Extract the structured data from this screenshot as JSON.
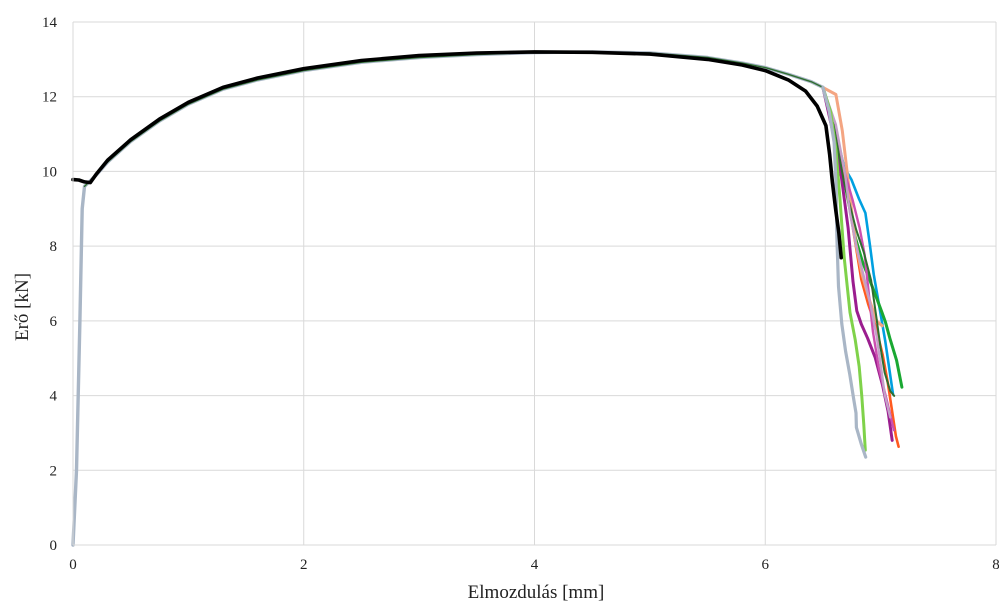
{
  "chart_data": {
    "type": "line",
    "title": "",
    "xlabel": "Elmozdulás [mm]",
    "ylabel": "Erő [kN]",
    "xlim": [
      0,
      8
    ],
    "ylim": [
      0,
      14
    ],
    "xticks": [
      0,
      2,
      4,
      6,
      8
    ],
    "yticks": [
      0,
      2,
      4,
      6,
      8,
      10,
      12,
      14
    ],
    "grid": true,
    "legend": "none",
    "common_curve": [
      [
        0.0,
        0.0
      ],
      [
        0.03,
        2.0
      ],
      [
        0.06,
        6.0
      ],
      [
        0.08,
        9.0
      ],
      [
        0.1,
        9.6
      ],
      [
        0.2,
        9.9
      ],
      [
        0.3,
        10.25
      ],
      [
        0.5,
        10.8
      ],
      [
        0.75,
        11.35
      ],
      [
        1.0,
        11.8
      ],
      [
        1.3,
        12.2
      ],
      [
        1.6,
        12.45
      ],
      [
        2.0,
        12.7
      ],
      [
        2.5,
        12.92
      ],
      [
        3.0,
        13.05
      ],
      [
        3.5,
        13.13
      ],
      [
        4.0,
        13.18
      ],
      [
        4.5,
        13.2
      ],
      [
        5.0,
        13.17
      ],
      [
        5.5,
        13.05
      ],
      [
        5.8,
        12.9
      ],
      [
        6.0,
        12.78
      ],
      [
        6.2,
        12.6
      ],
      [
        6.4,
        12.4
      ],
      [
        6.5,
        12.25
      ]
    ],
    "series": [
      {
        "color": "#00a0e0",
        "width": 2.6,
        "x": [
          6.5,
          6.6,
          6.7,
          6.75,
          6.8,
          6.85,
          6.9,
          6.95,
          7.0,
          7.05,
          7.1
        ],
        "y": [
          12.25,
          11.5,
          10.2,
          9.8,
          9.2,
          8.8,
          8.0,
          7.3,
          6.6,
          5.5,
          4.0
        ]
      },
      {
        "color": "#1aa832",
        "width": 3.0,
        "x": [
          6.5,
          6.6,
          6.7,
          6.8,
          6.85,
          6.9,
          6.95,
          7.0,
          7.05,
          7.1,
          7.15,
          7.18
        ],
        "y": [
          12.25,
          11.2,
          9.8,
          8.3,
          7.6,
          7.0,
          6.5,
          6.2,
          6.0,
          5.6,
          5.0,
          4.2
        ]
      },
      {
        "color": "#ff5a1f",
        "width": 2.6,
        "x": [
          6.5,
          6.6,
          6.7,
          6.8,
          6.85,
          6.9,
          6.95,
          7.0,
          7.05,
          7.1,
          7.15,
          7.17
        ],
        "y": [
          12.25,
          11.0,
          9.5,
          8.0,
          7.2,
          6.5,
          5.8,
          5.0,
          4.3,
          3.7,
          3.0,
          2.7
        ]
      },
      {
        "color": "#f4a582",
        "width": 3.0,
        "x": [
          6.5,
          6.6,
          6.65,
          6.7,
          6.75,
          6.8,
          6.85,
          6.9,
          6.95,
          7.0
        ],
        "y": [
          12.25,
          12.0,
          11.0,
          10.0,
          9.2,
          8.2,
          7.3,
          6.5,
          5.9,
          5.8
        ]
      },
      {
        "color": "#9b1d8f",
        "width": 3.0,
        "x": [
          6.5,
          6.6,
          6.65,
          6.7,
          6.75,
          6.8,
          6.85,
          6.9,
          6.95,
          7.0,
          7.05,
          7.1
        ],
        "y": [
          12.25,
          11.0,
          9.8,
          8.4,
          7.0,
          6.3,
          6.0,
          5.6,
          5.0,
          4.2,
          3.5,
          2.8
        ]
      },
      {
        "color": "#cc4fb0",
        "width": 2.4,
        "x": [
          6.5,
          6.6,
          6.7,
          6.75,
          6.8,
          6.85,
          6.9,
          6.95,
          7.0,
          7.05,
          7.1
        ],
        "y": [
          12.25,
          11.5,
          10.0,
          9.2,
          8.4,
          7.7,
          6.8,
          5.8,
          4.8,
          3.9,
          3.0
        ]
      },
      {
        "color": "#2f6e2f",
        "width": 2.0,
        "x": [
          6.5,
          6.6,
          6.7,
          6.8,
          6.85,
          6.9,
          6.95,
          7.0,
          7.05,
          7.1,
          7.12
        ],
        "y": [
          12.25,
          11.3,
          9.8,
          8.5,
          7.8,
          7.0,
          6.0,
          5.3,
          4.7,
          4.2,
          4.0
        ]
      },
      {
        "color": "#c3a0c8",
        "width": 2.4,
        "x": [
          6.5,
          6.6,
          6.7,
          6.75,
          6.8,
          6.85,
          6.9,
          6.95,
          7.0,
          7.05,
          7.1
        ],
        "y": [
          12.25,
          11.2,
          9.9,
          9.0,
          8.1,
          7.2,
          6.3,
          5.5,
          4.8,
          4.1,
          3.5
        ]
      },
      {
        "color": "#7fd24a",
        "width": 3.0,
        "x": [
          6.5,
          6.55,
          6.6,
          6.65,
          6.7,
          6.75,
          6.78,
          6.8,
          6.82,
          6.85,
          6.88
        ],
        "y": [
          12.25,
          11.5,
          10.5,
          9.3,
          7.8,
          6.3,
          5.5,
          4.7,
          3.9,
          3.2,
          2.6
        ]
      },
      {
        "color": "#a9b6c6",
        "width": 3.2,
        "x": [
          6.5,
          6.55,
          6.58,
          6.6,
          6.62,
          6.65,
          6.68,
          6.7,
          6.72,
          6.75,
          6.78,
          6.8,
          6.85,
          6.88
        ],
        "y": [
          12.25,
          11.6,
          10.7,
          9.5,
          8.3,
          7.0,
          6.0,
          5.2,
          4.5,
          3.8,
          3.5,
          3.2,
          2.8,
          2.4
        ]
      },
      {
        "color": "#000000",
        "width": 3.6,
        "x": [
          0.0,
          0.05,
          0.1,
          0.15,
          0.2,
          0.3,
          0.5,
          0.75,
          1.0,
          1.3,
          1.6,
          2.0,
          2.5,
          3.0,
          3.5,
          4.0,
          4.5,
          5.0,
          5.5,
          5.8,
          6.0,
          6.2,
          6.35,
          6.45,
          6.52,
          6.57,
          6.6,
          6.62,
          6.63,
          6.64
        ],
        "y": [
          9.78,
          9.77,
          9.72,
          9.7,
          9.92,
          10.3,
          10.85,
          11.4,
          11.85,
          12.25,
          12.5,
          12.75,
          12.97,
          13.1,
          13.17,
          13.2,
          13.19,
          13.14,
          13.0,
          12.85,
          12.7,
          12.45,
          12.15,
          11.75,
          11.2,
          10.5,
          9.8,
          9.0,
          8.3,
          7.6
        ]
      }
    ]
  }
}
